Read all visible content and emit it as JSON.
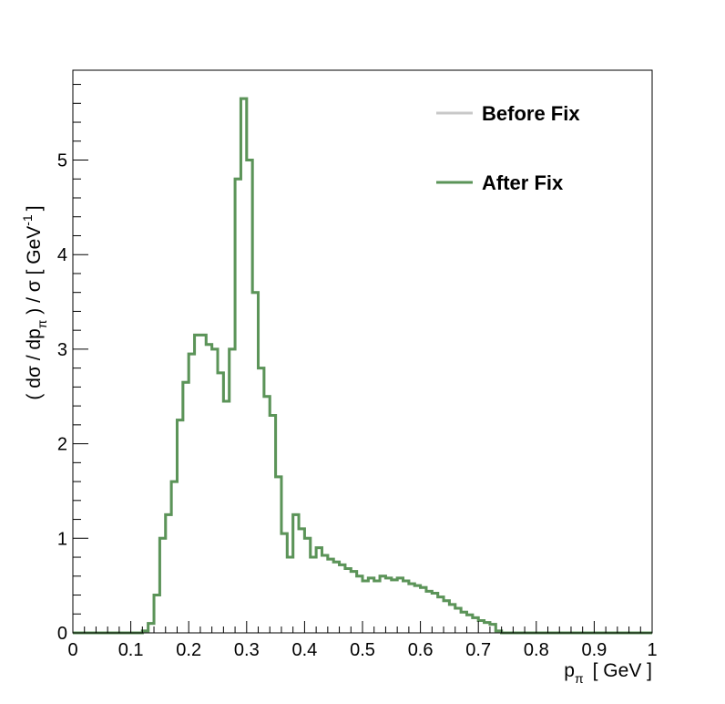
{
  "chart_data": {
    "type": "line",
    "style": "step-histogram",
    "xlabel_main": "p",
    "xlabel_sub": "π",
    "xlabel_unit": "[ GeV ]",
    "ylabel_parts": {
      "a": "( dσ / dp",
      "sub": "π",
      "b": " ) / σ  [ GeV",
      "sup": "-1",
      "c": "]"
    },
    "xlim": [
      0,
      1
    ],
    "ylim": [
      0,
      5.95
    ],
    "x_ticks": [
      "0",
      "0.1",
      "0.2",
      "0.3",
      "0.4",
      "0.5",
      "0.6",
      "0.7",
      "0.8",
      "0.9",
      "1"
    ],
    "y_ticks": [
      "0",
      "1",
      "2",
      "3",
      "4",
      "5"
    ],
    "legend_position": "top-right",
    "bin_edges_start": 0,
    "bin_width": 0.01,
    "series": [
      {
        "name": "Before Fix",
        "color": "#c8c8c8",
        "values": [
          0,
          0,
          0,
          0,
          0,
          0,
          0,
          0,
          0,
          0,
          0,
          0,
          0.02,
          0.1,
          0.4,
          1.0,
          1.25,
          1.6,
          2.25,
          2.65,
          2.95,
          3.15,
          3.15,
          3.05,
          3.0,
          2.75,
          2.45,
          3.0,
          4.8,
          5.65,
          5.0,
          3.6,
          2.8,
          2.5,
          2.3,
          1.65,
          1.05,
          0.8,
          1.25,
          1.1,
          1.0,
          0.8,
          0.9,
          0.82,
          0.78,
          0.75,
          0.72,
          0.68,
          0.65,
          0.6,
          0.55,
          0.58,
          0.55,
          0.6,
          0.58,
          0.56,
          0.58,
          0.55,
          0.52,
          0.5,
          0.48,
          0.44,
          0.42,
          0.38,
          0.34,
          0.3,
          0.26,
          0.22,
          0.19,
          0.16,
          0.13,
          0.11,
          0.09,
          0.02,
          0,
          0,
          0,
          0,
          0,
          0,
          0,
          0,
          0,
          0,
          0,
          0,
          0,
          0,
          0,
          0,
          0,
          0,
          0,
          0,
          0,
          0,
          0,
          0,
          0,
          0
        ]
      },
      {
        "name": "After Fix",
        "color": "#5b9458",
        "values": [
          0,
          0,
          0,
          0,
          0,
          0,
          0,
          0,
          0,
          0,
          0,
          0,
          0.02,
          0.1,
          0.4,
          1.0,
          1.25,
          1.6,
          2.25,
          2.65,
          2.95,
          3.15,
          3.15,
          3.05,
          3.0,
          2.75,
          2.45,
          3.0,
          4.8,
          5.65,
          5.0,
          3.6,
          2.8,
          2.5,
          2.3,
          1.65,
          1.05,
          0.8,
          1.25,
          1.1,
          1.0,
          0.8,
          0.9,
          0.82,
          0.78,
          0.75,
          0.72,
          0.68,
          0.65,
          0.6,
          0.55,
          0.58,
          0.55,
          0.6,
          0.58,
          0.56,
          0.58,
          0.55,
          0.52,
          0.5,
          0.48,
          0.44,
          0.42,
          0.38,
          0.34,
          0.3,
          0.26,
          0.22,
          0.19,
          0.16,
          0.13,
          0.11,
          0.09,
          0.02,
          0,
          0,
          0,
          0,
          0,
          0,
          0,
          0,
          0,
          0,
          0,
          0,
          0,
          0,
          0,
          0,
          0,
          0,
          0,
          0,
          0,
          0,
          0,
          0,
          0,
          0
        ]
      }
    ]
  }
}
